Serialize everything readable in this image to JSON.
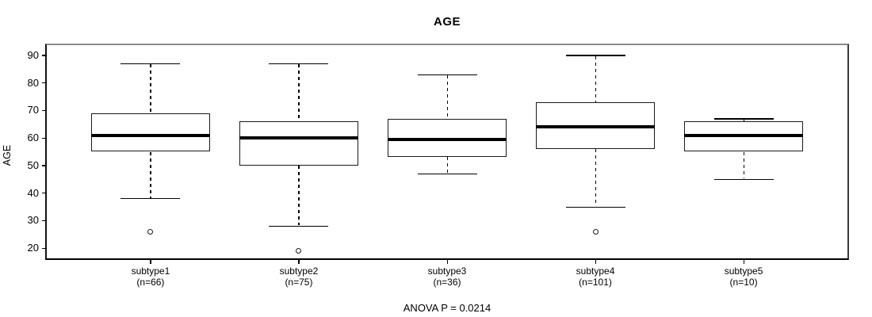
{
  "figure": {
    "title": "AGE",
    "y_axis_label": "AGE",
    "footer": "ANOVA P = 0.0214"
  },
  "chart_data": {
    "type": "boxplot",
    "title": "AGE",
    "xlabel": "",
    "ylabel": "AGE",
    "ylim": [
      16.3,
      93.7
    ],
    "yticks": [
      20,
      30,
      40,
      50,
      60,
      70,
      80,
      90
    ],
    "grid": false,
    "legend": "none",
    "categories": [
      "subtype1",
      "subtype2",
      "subtype3",
      "subtype4",
      "subtype5"
    ],
    "count_labels": [
      "(n=66)",
      "(n=75)",
      "(n=36)",
      "(n=101)",
      "(n=10)"
    ],
    "series": [
      {
        "name": "subtype1",
        "n": 66,
        "whisker_low": 38,
        "q1": 55,
        "median": 61,
        "q3": 69,
        "whisker_high": 87,
        "outliers": [
          26
        ]
      },
      {
        "name": "subtype2",
        "n": 75,
        "whisker_low": 28,
        "q1": 50,
        "median": 60,
        "q3": 66,
        "whisker_high": 87,
        "outliers": [
          19
        ]
      },
      {
        "name": "subtype3",
        "n": 36,
        "whisker_low": 47,
        "q1": 53,
        "median": 59.5,
        "q3": 67,
        "whisker_high": 83,
        "outliers": []
      },
      {
        "name": "subtype4",
        "n": 101,
        "whisker_low": 35,
        "q1": 56,
        "median": 64,
        "q3": 73,
        "whisker_high": 90,
        "outliers": [
          26
        ]
      },
      {
        "name": "subtype5",
        "n": 10,
        "whisker_low": 45,
        "q1": 55,
        "median": 61,
        "q3": 66,
        "whisker_high": 67,
        "outliers": []
      }
    ],
    "annotation": "ANOVA P = 0.0214"
  }
}
